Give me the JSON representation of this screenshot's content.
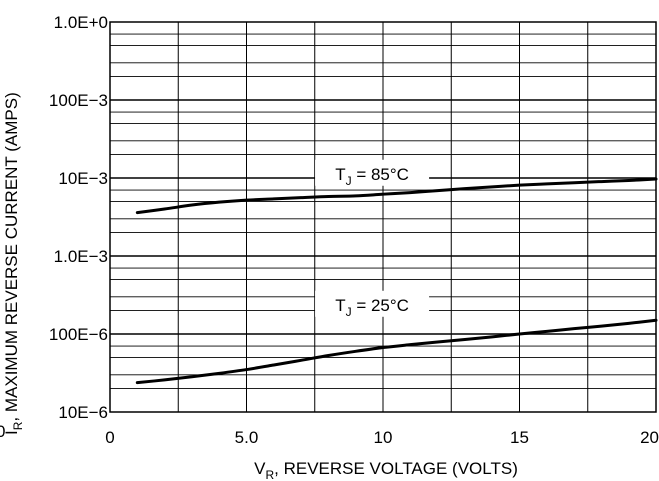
{
  "chart_data": {
    "type": "line",
    "ylog": true,
    "grid": true,
    "xlim": [
      0,
      20
    ],
    "ylim": [
      1e-05,
      1.0
    ],
    "x_ticks": [
      {
        "value": 0,
        "label": "0"
      },
      {
        "value": 5,
        "label": "5.0"
      },
      {
        "value": 10,
        "label": "10"
      },
      {
        "value": 15,
        "label": "15"
      },
      {
        "value": 20,
        "label": "20"
      }
    ],
    "y_ticks": [
      {
        "value": 1.0,
        "label": "1.0E+0"
      },
      {
        "value": 0.1,
        "label": "100E−3"
      },
      {
        "value": 0.01,
        "label": "10E−3"
      },
      {
        "value": 0.001,
        "label": "1.0E−3"
      },
      {
        "value": 0.0001,
        "label": "100E−6"
      },
      {
        "value": 1e-05,
        "label": "10E−6"
      }
    ],
    "xlabel": {
      "prefix": "V",
      "sub": "R",
      "suffix": ", REVERSE VOLTAGE (VOLTS)"
    },
    "ylabel": {
      "prefix": "I",
      "sub": "R",
      "suffix": ", MAXIMUM REVERSE CURRENT (AMPS)"
    },
    "stray_label": "0",
    "series": [
      {
        "label": {
          "prefix": "T",
          "sub": "J",
          "suffix": " = 85°C",
          "x": 9.6,
          "y": 0.011
        },
        "x": [
          1,
          2,
          3,
          4,
          5,
          6,
          7,
          8,
          9,
          10,
          11,
          12,
          13,
          14,
          15,
          16,
          17,
          18,
          19,
          20
        ],
        "y": [
          0.0036,
          0.004,
          0.0045,
          0.0049,
          0.0052,
          0.0054,
          0.0056,
          0.0058,
          0.0059,
          0.0062,
          0.0065,
          0.0069,
          0.0073,
          0.0077,
          0.0081,
          0.0084,
          0.0087,
          0.009,
          0.0093,
          0.0097
        ]
      },
      {
        "label": {
          "prefix": "T",
          "sub": "J",
          "suffix": " = 25°C",
          "x": 9.6,
          "y": 0.00023
        },
        "x": [
          1,
          2,
          3,
          4,
          5,
          6,
          7,
          8,
          9,
          10,
          11,
          12,
          13,
          14,
          15,
          16,
          17,
          18,
          19,
          20
        ],
        "y": [
          2.38e-05,
          2.58e-05,
          2.83e-05,
          3.13e-05,
          3.5e-05,
          4e-05,
          4.6e-05,
          5.3e-05,
          6e-05,
          6.7e-05,
          7.3e-05,
          7.9e-05,
          8.5e-05,
          9.2e-05,
          0.0001,
          0.000108,
          0.000117,
          0.000126,
          0.000137,
          0.00015
        ]
      }
    ]
  }
}
